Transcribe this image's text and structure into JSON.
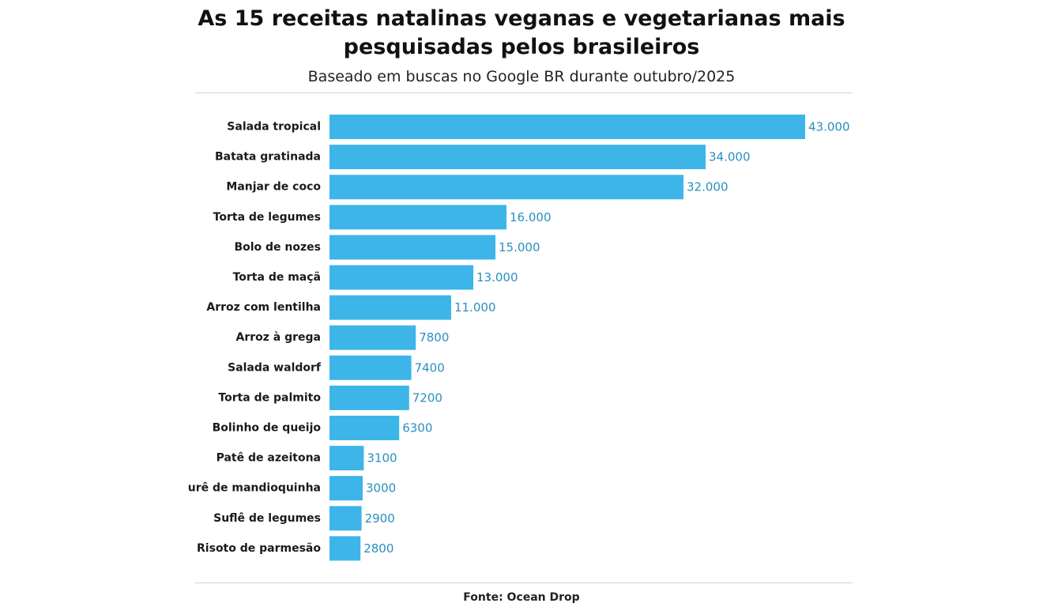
{
  "colors": {
    "bar": "#3db5e8",
    "value_label": "#2a8fc0"
  },
  "chart_data": {
    "type": "bar",
    "orientation": "horizontal",
    "title": "As 15 receitas natalinas veganas e vegetarianas mais pesquisadas pelos brasileiros",
    "subtitle": "Baseado em buscas no Google BR durante outubro/2025",
    "source": "Fonte: Ocean Drop",
    "categories": [
      "Salada tropical",
      "Batata gratinada",
      "Manjar de coco",
      "Torta de legumes",
      "Bolo de nozes",
      "Torta de maçã",
      "Arroz com lentilha",
      "Arroz à grega",
      "Salada waldorf",
      "Torta de palmito",
      "Bolinho de queijo",
      "Patê de azeitona",
      "urê de mandioquinha",
      "Suflê de legumes",
      "Risoto de parmesão"
    ],
    "values": [
      43000,
      34000,
      32000,
      16000,
      15000,
      13000,
      11000,
      7800,
      7400,
      7200,
      6300,
      3100,
      3000,
      2900,
      2800
    ],
    "value_labels": [
      "43.000",
      "34.000",
      "32.000",
      "16.000",
      "15.000",
      "13.000",
      "11.000",
      "7800",
      "7400",
      "7200",
      "6300",
      "3100",
      "3000",
      "2900",
      "2800"
    ],
    "xlim": [
      0,
      43000
    ],
    "grid": false,
    "legend": "none"
  }
}
